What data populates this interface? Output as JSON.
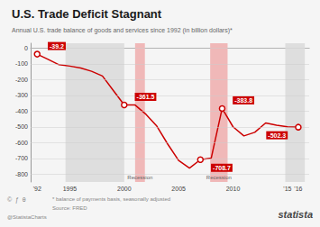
{
  "chart_data": {
    "type": "line",
    "title": "U.S. Trade Deficit Stagnant",
    "subtitle": "Annual U.S. trade balance of goods and services since 1992 (in billion dollars)*",
    "footnote": "* balance of payments basis, seasonally adjusted",
    "source": "Source: FRED",
    "brand": "statista",
    "handle": "@StatistaCharts",
    "icons": "©  ƒ  θ",
    "x": [
      1992,
      1993,
      1994,
      1995,
      1996,
      1997,
      1998,
      1999,
      2000,
      2001,
      2002,
      2003,
      2004,
      2005,
      2006,
      2007,
      2008,
      2009,
      2010,
      2011,
      2012,
      2013,
      2014,
      2015,
      2016
    ],
    "values": [
      -39.2,
      -72,
      -106,
      -115,
      -127,
      -148,
      -178,
      -270,
      -361.5,
      -362,
      -421,
      -496,
      -610,
      -714,
      -762,
      -708.7,
      -698,
      -383.8,
      -500,
      -558,
      -535,
      -476,
      -490,
      -500,
      -502.3
    ],
    "color": "#cc0000",
    "background_color": "#f5f5f5",
    "annotations": [
      {
        "x": 1992,
        "y": -39.2,
        "label": "-39.2"
      },
      {
        "x": 2000,
        "y": -361.5,
        "label": "-361.5"
      },
      {
        "x": 2007,
        "y": -708.7,
        "label": "-708.7"
      },
      {
        "x": 2009,
        "y": -383.8,
        "label": "-383.8"
      },
      {
        "x": 2016,
        "y": -502.3,
        "label": "-502.3"
      }
    ],
    "bands": [
      {
        "start": 1994.6,
        "end": 2000.0,
        "color": "#dedede"
      },
      {
        "start": 2014.8,
        "end": 2016.6,
        "color": "#dedede"
      },
      {
        "start": 2001.0,
        "end": 2001.9,
        "color": "#f0b8b8",
        "label": "Recession"
      },
      {
        "start": 2007.9,
        "end": 2009.5,
        "color": "#f0b8b8",
        "label": "Recession"
      }
    ],
    "xlim": [
      1991.4,
      2017.0
    ],
    "xticks": [
      {
        "value": 1992,
        "label": "'92"
      },
      1995,
      2000,
      2005,
      2010,
      {
        "value": 2015,
        "label": "'15"
      },
      {
        "value": 2016,
        "label": "'16"
      }
    ],
    "ylim": [
      -850,
      30
    ],
    "yticks": [
      0,
      -100,
      -200,
      -300,
      -400,
      -500,
      -600,
      -700,
      -800
    ],
    "grid": true
  }
}
